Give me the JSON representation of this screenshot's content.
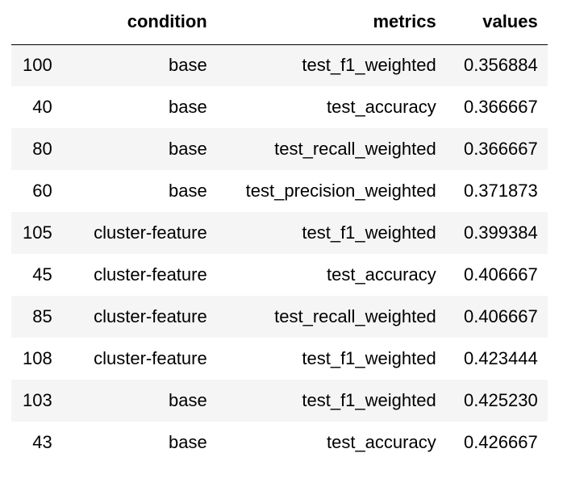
{
  "table": {
    "columns": {
      "index": "",
      "condition": "condition",
      "metrics": "metrics",
      "values": "values"
    },
    "rows": [
      {
        "index": "100",
        "condition": "base",
        "metrics": "test_f1_weighted",
        "values": "0.356884"
      },
      {
        "index": "40",
        "condition": "base",
        "metrics": "test_accuracy",
        "values": "0.366667"
      },
      {
        "index": "80",
        "condition": "base",
        "metrics": "test_recall_weighted",
        "values": "0.366667"
      },
      {
        "index": "60",
        "condition": "base",
        "metrics": "test_precision_weighted",
        "values": "0.371873"
      },
      {
        "index": "105",
        "condition": "cluster-feature",
        "metrics": "test_f1_weighted",
        "values": "0.399384"
      },
      {
        "index": "45",
        "condition": "cluster-feature",
        "metrics": "test_accuracy",
        "values": "0.406667"
      },
      {
        "index": "85",
        "condition": "cluster-feature",
        "metrics": "test_recall_weighted",
        "values": "0.406667"
      },
      {
        "index": "108",
        "condition": "cluster-feature",
        "metrics": "test_f1_weighted",
        "values": "0.423444"
      },
      {
        "index": "103",
        "condition": "base",
        "metrics": "test_f1_weighted",
        "values": "0.425230"
      },
      {
        "index": "43",
        "condition": "base",
        "metrics": "test_accuracy",
        "values": "0.426667"
      }
    ]
  },
  "colors": {
    "stripe": "#f5f5f5",
    "background": "#ffffff",
    "text": "#000000"
  }
}
